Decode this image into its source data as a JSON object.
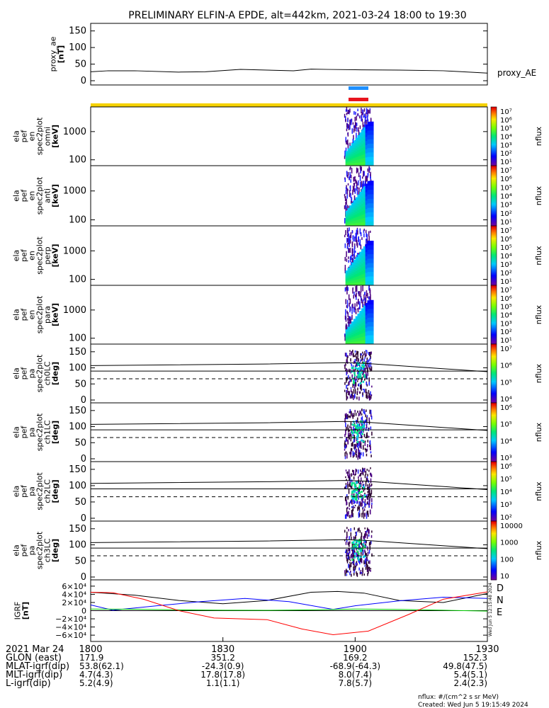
{
  "title": "PRELIMINARY ELFIN-A EPDE, alt=442km, 2021-03-24 18:00 to 19:30",
  "chart_data": [
    {
      "type": "line",
      "id": "proxy_ae",
      "ylabel": [
        "proxy_ae",
        "[nT]"
      ],
      "yticks": [
        "150",
        "100",
        "50",
        "0"
      ],
      "ylim": [
        0,
        160
      ],
      "series": [
        {
          "name": "proxy_AE",
          "x": [
            0,
            4,
            10,
            20,
            26,
            34,
            40,
            46,
            50,
            54,
            60,
            70,
            80,
            90
          ],
          "y": [
            27,
            30,
            30,
            26,
            27,
            34,
            32,
            30,
            35,
            34,
            33,
            32,
            30,
            23
          ]
        }
      ]
    },
    {
      "type": "heatmap",
      "id": "omni",
      "ylabel": [
        "ela",
        "pef",
        "en",
        "spec2plot",
        "omni",
        "[keV]"
      ],
      "yticks": [
        "1000",
        "100"
      ],
      "colorbar": {
        "label": "nflux",
        "ticks": [
          "10⁷",
          "10⁶",
          "10⁵",
          "10⁴",
          "10³",
          "10²",
          "10¹"
        ]
      }
    },
    {
      "type": "heatmap",
      "id": "anti",
      "ylabel": [
        "ela",
        "pef",
        "en",
        "spec2plot",
        "anti",
        "[keV]"
      ],
      "yticks": [
        "1000",
        "100"
      ],
      "colorbar": {
        "label": "nflux",
        "ticks": [
          "10⁷",
          "10⁶",
          "10⁵",
          "10⁴",
          "10³",
          "10²",
          "10¹"
        ]
      }
    },
    {
      "type": "heatmap",
      "id": "perp",
      "ylabel": [
        "ela",
        "pef",
        "en",
        "spec2plot",
        "perp",
        "[keV]"
      ],
      "yticks": [
        "1000",
        "100"
      ],
      "colorbar": {
        "label": "nflux",
        "ticks": [
          "10⁷",
          "10⁶",
          "10⁵",
          "10⁴",
          "10³",
          "10²",
          "10¹"
        ]
      }
    },
    {
      "type": "heatmap",
      "id": "para",
      "ylabel": [
        "ela",
        "pef",
        "en",
        "spec2plot",
        "para",
        "[keV]"
      ],
      "yticks": [
        "1000",
        "100"
      ],
      "colorbar": {
        "label": "nflux",
        "ticks": [
          "10⁷",
          "10⁶",
          "10⁵",
          "10⁴",
          "10³",
          "10²",
          "10¹"
        ]
      }
    },
    {
      "type": "heatmap",
      "id": "ch0LC",
      "ylabel": [
        "ela",
        "pef",
        "pa",
        "spec2plot",
        "ch0LC",
        "[deg]"
      ],
      "yticks": [
        "150",
        "100",
        "50",
        "0"
      ],
      "colorbar": {
        "label": "nflux",
        "ticks": [
          "10⁷",
          "10⁶",
          "10⁵",
          "10⁴"
        ]
      }
    },
    {
      "type": "heatmap",
      "id": "ch1LC",
      "ylabel": [
        "ela",
        "pef",
        "pa",
        "spec2plot",
        "ch1LC",
        "[deg]"
      ],
      "yticks": [
        "150",
        "100",
        "50",
        "0"
      ],
      "colorbar": {
        "label": "nflux",
        "ticks": [
          "10⁶",
          "10⁵",
          "10⁴",
          "10³"
        ]
      }
    },
    {
      "type": "heatmap",
      "id": "ch2LC",
      "ylabel": [
        "ela",
        "pef",
        "pa",
        "spec2plot",
        "ch2LC",
        "[deg]"
      ],
      "yticks": [
        "150",
        "100",
        "50",
        "0"
      ],
      "colorbar": {
        "label": "nflux",
        "ticks": [
          "10⁶",
          "10⁵",
          "10⁴",
          "10³",
          "10²"
        ]
      }
    },
    {
      "type": "heatmap",
      "id": "ch3LC",
      "ylabel": [
        "ela",
        "pef",
        "pa",
        "spec2plot",
        "ch3LC",
        "[deg]"
      ],
      "yticks": [
        "150",
        "100",
        "50",
        "0"
      ],
      "colorbar": {
        "label": "nflux",
        "ticks": [
          "10000",
          "1000",
          "100",
          "10"
        ]
      }
    },
    {
      "type": "line",
      "id": "igrf",
      "ylabel": [
        "IGRF",
        "[nT]"
      ],
      "yticks": [
        "6×10⁴",
        "4×10⁴",
        "2×10⁴",
        "0",
        "−2×10⁴",
        "−4×10⁴",
        "−6×10⁴"
      ],
      "ylim": [
        -65000,
        65000
      ],
      "legend": [
        "D",
        "N",
        "E"
      ],
      "series": [
        {
          "name": "D",
          "color": "#000000",
          "x": [
            0,
            10,
            20,
            30,
            40,
            50,
            56,
            62,
            70,
            80,
            90
          ],
          "y": [
            45000,
            38000,
            25000,
            17000,
            25000,
            45000,
            47000,
            43000,
            25000,
            20000,
            42000
          ]
        },
        {
          "name": "N",
          "color": "#0000ff",
          "x": [
            0,
            5,
            15,
            25,
            35,
            45,
            55,
            60,
            70,
            80,
            90
          ],
          "y": [
            14000,
            1000,
            12000,
            22000,
            30000,
            22000,
            3000,
            12000,
            24000,
            33000,
            30000
          ]
        },
        {
          "name": "E",
          "color": "#00cc00",
          "x": [
            0,
            10,
            20,
            30,
            40,
            50,
            60,
            70,
            80,
            90
          ],
          "y": [
            4000,
            3500,
            2000,
            1000,
            800,
            2000,
            4000,
            3000,
            1000,
            -1000
          ]
        },
        {
          "name": "",
          "color": "#ff0000",
          "x": [
            0,
            5,
            12,
            20,
            28,
            40,
            48,
            55,
            63,
            72,
            80,
            90
          ],
          "y": [
            45000,
            44000,
            28000,
            0,
            -18000,
            -22000,
            -45000,
            -59000,
            -50000,
            -10000,
            28000,
            46000
          ]
        }
      ]
    }
  ],
  "xaxis": {
    "ticks": [
      {
        "t": 0,
        "label": "1800"
      },
      {
        "t": 30,
        "label": "1830"
      },
      {
        "t": 60,
        "label": "1900"
      },
      {
        "t": 90,
        "label": "1930"
      }
    ],
    "rows": [
      {
        "label": "2021 Mar 24",
        "values": [
          "",
          "",
          "",
          ""
        ]
      },
      {
        "label": "GLON (east)",
        "values": [
          "171.9",
          "351.2",
          "169.2",
          "152.3"
        ]
      },
      {
        "label": "MLAT-igrf(dip)",
        "values": [
          "53.8(62.1)",
          "-24.3(0.9)",
          "-68.9(-64.3)",
          "49.8(47.5)"
        ]
      },
      {
        "label": "MLT-igrf(dip)",
        "values": [
          "4.7(4.3)",
          "17.8(17.8)",
          "8.0(7.4)",
          "5.4(5.1)"
        ]
      },
      {
        "label": "L-igrf(dip)",
        "values": [
          "5.2(4.9)",
          "1.1(1.1)",
          "7.8(5.7)",
          "2.4(2.3)"
        ]
      }
    ]
  },
  "footer": {
    "units": "nflux: #/(cm^2 s sr MeV)",
    "created": "Created: Wed Jun  5 19:15:49 2024"
  },
  "side_stamp": "Wed Jun  5 12:15:48 2024",
  "colors": {
    "bar_blue": "#1e90ff",
    "bar_red": "#e8141e",
    "yellow": "#f5d200",
    "trace": "#000000"
  }
}
